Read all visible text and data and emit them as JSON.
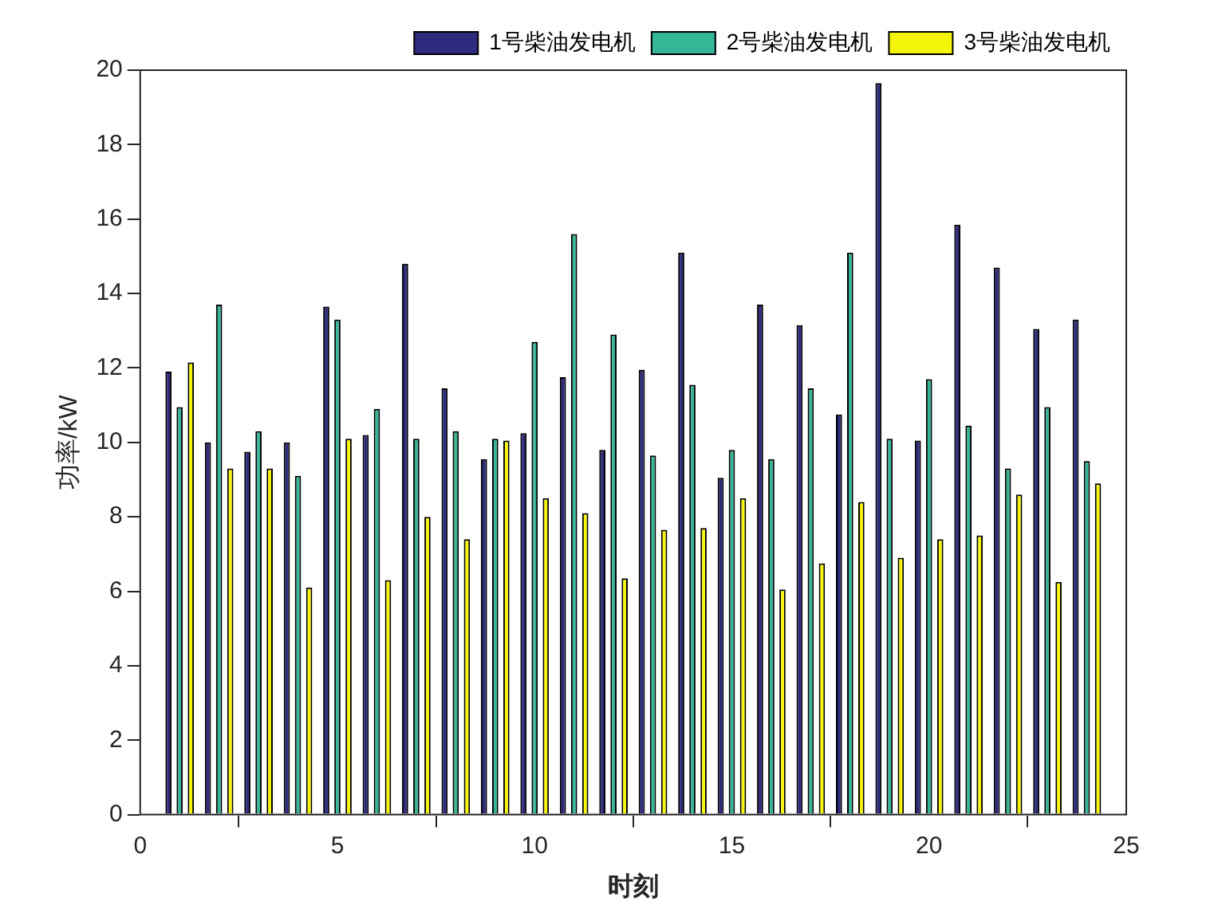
{
  "chart_data": {
    "type": "bar",
    "xlabel": "时刻",
    "ylabel": "功率/kW",
    "x": [
      1,
      2,
      3,
      4,
      5,
      6,
      7,
      8,
      9,
      10,
      11,
      12,
      13,
      14,
      15,
      16,
      17,
      18,
      19,
      20,
      21,
      22,
      23,
      24
    ],
    "series": [
      {
        "name": "1号柴油发电机",
        "color": "#2e2b7e",
        "values": [
          11.9,
          10.0,
          9.75,
          10.0,
          13.65,
          10.2,
          14.8,
          11.45,
          9.55,
          10.25,
          11.75,
          9.8,
          11.95,
          15.1,
          9.05,
          13.7,
          13.15,
          10.75,
          19.65,
          10.05,
          15.85,
          14.7,
          13.05,
          13.3
        ]
      },
      {
        "name": "2号柴油发电机",
        "color": "#35b697",
        "values": [
          10.95,
          13.7,
          10.3,
          9.1,
          13.3,
          10.9,
          10.1,
          10.3,
          10.1,
          12.7,
          15.6,
          12.9,
          9.65,
          11.55,
          9.8,
          9.55,
          11.45,
          15.1,
          10.1,
          11.7,
          10.45,
          9.3,
          10.95,
          9.5
        ]
      },
      {
        "name": "3号柴油发电机",
        "color": "#f5f50a",
        "values": [
          12.15,
          9.3,
          9.3,
          6.1,
          10.1,
          6.3,
          8.0,
          7.4,
          10.05,
          8.5,
          8.1,
          6.35,
          7.65,
          7.7,
          8.5,
          6.05,
          6.75,
          8.4,
          6.9,
          7.4,
          7.5,
          8.6,
          6.25,
          8.9
        ]
      }
    ],
    "xlim": [
      0,
      25
    ],
    "xticks": [
      0,
      5,
      10,
      15,
      20,
      25
    ],
    "ylim": [
      0,
      20
    ],
    "yticks": [
      0,
      2,
      4,
      6,
      8,
      10,
      12,
      14,
      16,
      18,
      20
    ],
    "grid": false,
    "legend": "top right"
  }
}
